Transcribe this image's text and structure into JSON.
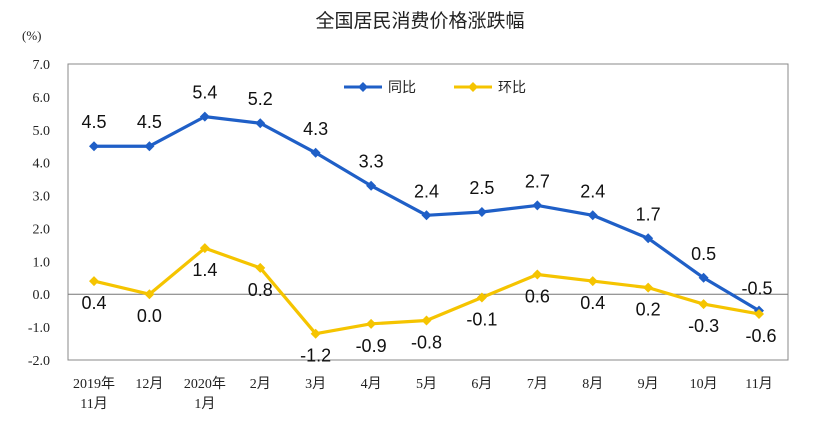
{
  "chart_data": {
    "type": "line",
    "title": "全国居民消费价格涨跌幅",
    "ylabel": "(%)",
    "ylim": [
      -2.0,
      7.0
    ],
    "yticks": [
      "7.0",
      "6.0",
      "5.0",
      "4.0",
      "3.0",
      "2.0",
      "1.0",
      "0.0",
      "-1.0",
      "-2.0"
    ],
    "categories": [
      [
        "2019年",
        "11月"
      ],
      [
        "12月"
      ],
      [
        "2020年",
        "1月"
      ],
      [
        "2月"
      ],
      [
        "3月"
      ],
      [
        "4月"
      ],
      [
        "5月"
      ],
      [
        "6月"
      ],
      [
        "7月"
      ],
      [
        "8月"
      ],
      [
        "9月"
      ],
      [
        "10月"
      ],
      [
        "11月"
      ]
    ],
    "series": [
      {
        "name": "同比",
        "color": "#1f5fc7",
        "values": [
          4.5,
          4.5,
          5.4,
          5.2,
          4.3,
          3.3,
          2.4,
          2.5,
          2.7,
          2.4,
          1.7,
          0.5,
          -0.5
        ],
        "labels": [
          "4.5",
          "4.5",
          "5.4",
          "5.2",
          "4.3",
          "3.3",
          "2.4",
          "2.5",
          "2.7",
          "2.4",
          "1.7",
          "0.5",
          "-0.5"
        ]
      },
      {
        "name": "环比",
        "color": "#f5c400",
        "values": [
          0.4,
          0.0,
          1.4,
          0.8,
          -1.2,
          -0.9,
          -0.8,
          -0.1,
          0.6,
          0.4,
          0.2,
          -0.3,
          -0.6
        ],
        "labels": [
          "0.4",
          "0.0",
          "1.4",
          "0.8",
          "-1.2",
          "-0.9",
          "-0.8",
          "-0.1",
          "0.6",
          "0.4",
          "0.2",
          "-0.3",
          "-0.6"
        ]
      }
    ],
    "legend_position": "top-center",
    "grid": false
  }
}
